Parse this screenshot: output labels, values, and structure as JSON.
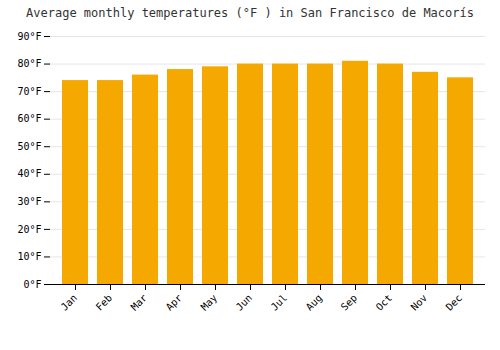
{
  "chart_data": {
    "type": "bar",
    "title": "Average monthly temperatures (°F ) in San Francisco de Macorís",
    "categories": [
      "Jan",
      "Feb",
      "Mar",
      "Apr",
      "May",
      "Jun",
      "Jul",
      "Aug",
      "Sep",
      "Oct",
      "Nov",
      "Dec"
    ],
    "values": [
      74,
      74,
      76,
      78,
      79,
      80,
      80,
      80,
      81,
      80,
      77,
      75
    ],
    "color": "#F5A800",
    "ylim": [
      0,
      90
    ],
    "yticks": [
      {
        "value": 0,
        "label": "0°F"
      },
      {
        "value": 10,
        "label": "10°F"
      },
      {
        "value": 20,
        "label": "20°F"
      },
      {
        "value": 30,
        "label": "30°F"
      },
      {
        "value": 40,
        "label": "40°F"
      },
      {
        "value": 50,
        "label": "50°F"
      },
      {
        "value": 60,
        "label": "60°F"
      },
      {
        "value": 70,
        "label": "70°F"
      },
      {
        "value": 80,
        "label": "80°F"
      },
      {
        "value": 90,
        "label": "90°F"
      }
    ],
    "grid": true
  }
}
